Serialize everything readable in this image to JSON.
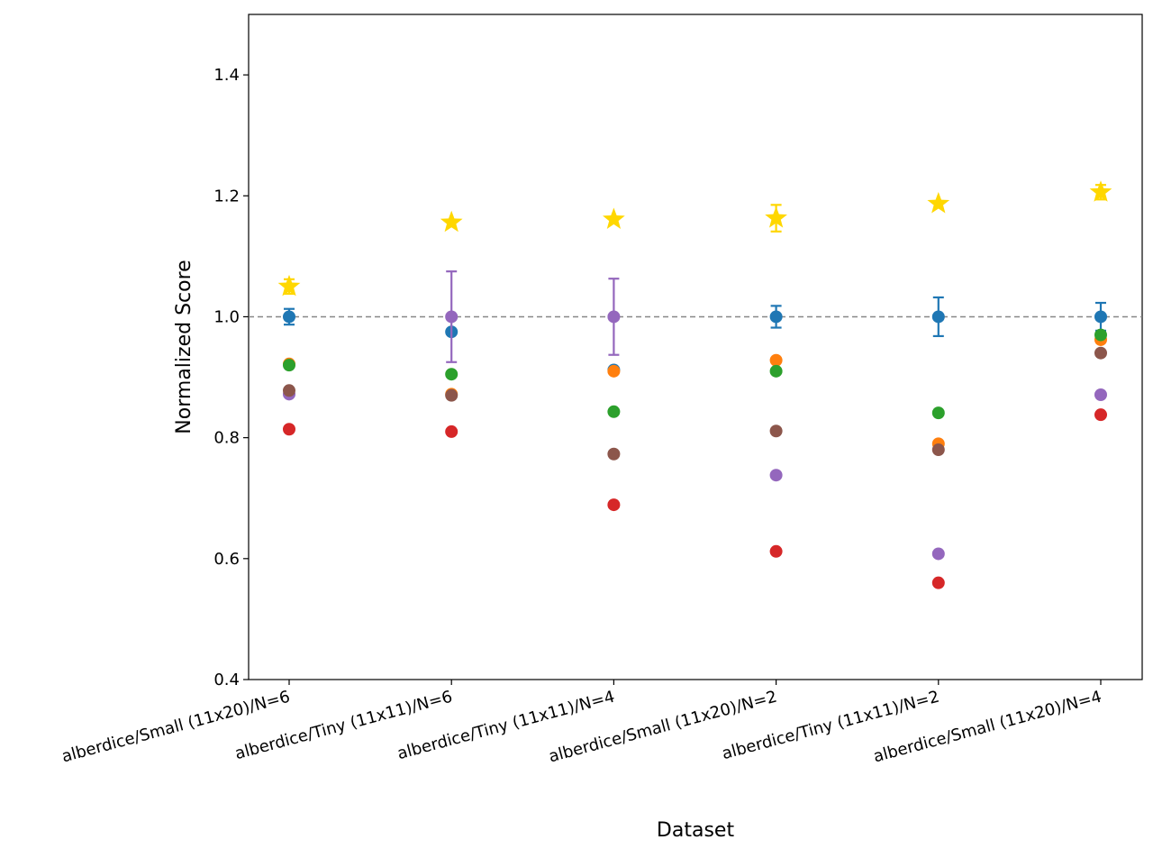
{
  "chart_data": {
    "type": "scatter",
    "xlabel": "Dataset",
    "ylabel": "Normalized Score",
    "ylim": [
      0.4,
      1.5
    ],
    "yticks": [
      "0.4",
      "0.6",
      "0.8",
      "1.0",
      "1.2",
      "1.4"
    ],
    "ytick_values": [
      0.4,
      0.6,
      0.8,
      1.0,
      1.2,
      1.4
    ],
    "reference_line": 1.0,
    "categories": [
      "alberdice/Small (11x20)/N=6",
      "alberdice/Tiny (11x11)/N=6",
      "alberdice/Tiny (11x11)/N=4",
      "alberdice/Small (11x20)/N=2",
      "alberdice/Tiny (11x11)/N=2",
      "alberdice/Small (11x20)/N=4"
    ],
    "series": [
      {
        "color": "#1f77b4",
        "marker": "circle",
        "values": [
          1.0,
          0.975,
          0.912,
          1.0,
          1.0,
          1.0
        ],
        "err": [
          0.013,
          0,
          0,
          0.018,
          0.032,
          0.023
        ]
      },
      {
        "color": "#ff7f0e",
        "marker": "circle",
        "values": [
          0.922,
          0.872,
          0.91,
          0.928,
          0.79,
          0.962
        ],
        "err": [
          0,
          0,
          0,
          0,
          0,
          0
        ]
      },
      {
        "color": "#2ca02c",
        "marker": "circle",
        "values": [
          0.92,
          0.905,
          0.843,
          0.91,
          0.841,
          0.97
        ],
        "err": [
          0,
          0,
          0,
          0,
          0,
          0
        ]
      },
      {
        "color": "#d62728",
        "marker": "circle",
        "values": [
          0.814,
          0.81,
          0.689,
          0.612,
          0.56,
          0.838
        ],
        "err": [
          0,
          0,
          0,
          0,
          0,
          0
        ]
      },
      {
        "color": "#9467bd",
        "marker": "circle",
        "values": [
          0.872,
          1.0,
          1.0,
          0.738,
          0.608,
          0.871
        ],
        "err": [
          0,
          0.075,
          0.063,
          0,
          0,
          0
        ]
      },
      {
        "color": "#8c564b",
        "marker": "circle",
        "values": [
          0.878,
          0.87,
          0.773,
          0.811,
          0.78,
          0.94
        ],
        "err": [
          0,
          0,
          0,
          0,
          0,
          0
        ]
      },
      {
        "color": "#ffd700",
        "marker": "star",
        "values": [
          1.05,
          1.156,
          1.161,
          1.163,
          1.187,
          1.206
        ],
        "err": [
          0.012,
          0,
          0,
          0.022,
          0,
          0.012
        ]
      }
    ]
  }
}
